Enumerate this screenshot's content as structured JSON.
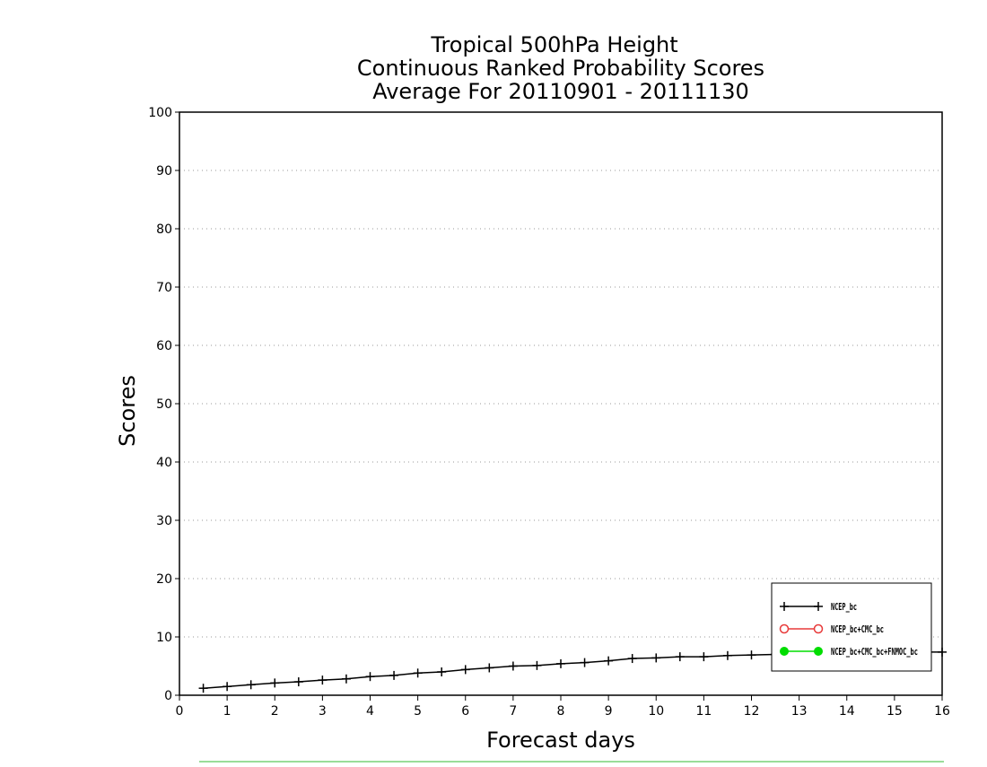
{
  "chart_data": {
    "type": "line",
    "title": [
      "Tropical 500hPa Height",
      "Continuous Ranked Probability Scores",
      "Average For 20110901 - 20111130"
    ],
    "xlabel": "Forecast days",
    "ylabel": "Scores",
    "xlim": [
      0,
      16
    ],
    "ylim": [
      0,
      100
    ],
    "xticks": [
      0,
      1,
      2,
      3,
      4,
      5,
      6,
      7,
      8,
      9,
      10,
      11,
      12,
      13,
      14,
      15,
      16
    ],
    "yticks": [
      0,
      10,
      20,
      30,
      40,
      50,
      60,
      70,
      80,
      90,
      100
    ],
    "grid": "horizontal dotted",
    "legend_position": "bottom-right",
    "series": [
      {
        "name": "NCEP_bc",
        "color": "#000000",
        "marker": "plus",
        "x": [
          0.5,
          1,
          1.5,
          2,
          2.5,
          3,
          3.5,
          4,
          4.5,
          5,
          5.5,
          6,
          6.5,
          7,
          7.5,
          8,
          8.5,
          9,
          9.5,
          10,
          10.5,
          11,
          11.5,
          12,
          12.5,
          13,
          13.5,
          14,
          14.5,
          15,
          15.5,
          16
        ],
        "y": [
          1.2,
          1.5,
          1.8,
          2.1,
          2.3,
          2.6,
          2.8,
          3.2,
          3.4,
          3.8,
          4.0,
          4.4,
          4.7,
          5.0,
          5.1,
          5.4,
          5.6,
          5.9,
          6.3,
          6.4,
          6.6,
          6.6,
          6.8,
          6.9,
          7.0,
          7.1,
          7.1,
          7.2,
          7.3,
          7.3,
          7.4,
          7.4
        ]
      },
      {
        "name": "NCEP_bc+CMC_bc",
        "color": "#e83a3a",
        "marker": "open-circle",
        "x": [],
        "y": []
      },
      {
        "name": "NCEP_bc+CMC_bc+FNMOC_bc",
        "color": "#00dd00",
        "marker": "filled-circle",
        "x": [],
        "y": []
      }
    ]
  }
}
